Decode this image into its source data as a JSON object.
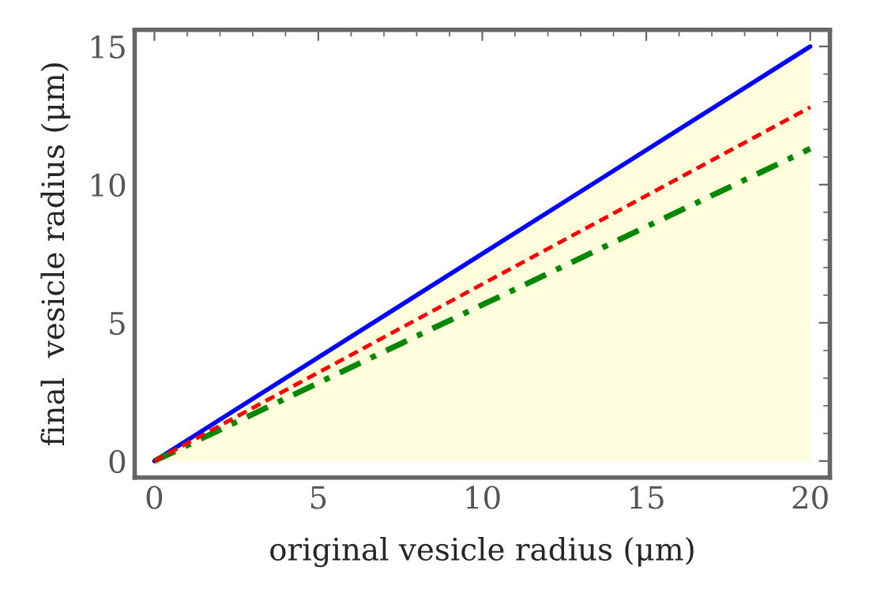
{
  "chart_data": {
    "type": "line",
    "xlabel": "original vesicle radius (μm)",
    "ylabel": "final  vesicle radius (μm)",
    "x": [
      0,
      20
    ],
    "series": [
      {
        "color": "#0000ff",
        "values": [
          0,
          15
        ],
        "line_style": "solid",
        "lower": [
          0,
          0
        ],
        "upper": [
          0,
          15
        ]
      },
      {
        "color": "#ff0000",
        "values": [
          0,
          12.8
        ],
        "line_style": "dashed"
      },
      {
        "color": "#008800",
        "values": [
          0,
          11.3
        ],
        "line_style": "dashdot"
      }
    ],
    "xlim": [
      -0.6,
      20.6
    ],
    "ylim": [
      -0.6,
      15.6
    ],
    "xticks": [
      0,
      5,
      10,
      15,
      20
    ],
    "yticks": [
      0,
      5,
      10,
      15
    ],
    "grid": false,
    "legend": false
  }
}
